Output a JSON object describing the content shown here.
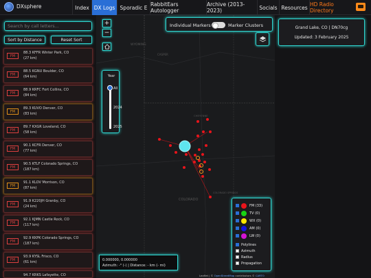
{
  "app": {
    "title": "DXsphere"
  },
  "nav": [
    {
      "label": "Index"
    },
    {
      "label": "DX Logs"
    },
    {
      "label": "Sporadic E"
    },
    {
      "label": "RabbitEars Autologger"
    },
    {
      "label": "Archive (2013-2023)"
    },
    {
      "label": "Socials"
    },
    {
      "label": "Resources"
    },
    {
      "label": "HD Radio Directory"
    }
  ],
  "sidebar": {
    "search_placeholder": "Search by call letters...",
    "sort_label": "Sort by Distance",
    "reset_label": "Reset Sort",
    "stations": [
      {
        "band": "FM",
        "name": "88.3 KFFR Winter Park, CO",
        "dist": "(27 km)"
      },
      {
        "band": "FM",
        "name": "88.5 KGNU Boulder, CO",
        "dist": "(64 km)"
      },
      {
        "band": "FM",
        "name": "88.9 KRFC Fort Collins, CO",
        "dist": "(84 km)"
      },
      {
        "band": "FM",
        "name": "89.3 KUVO Denver, CO",
        "dist": "(83 km)"
      },
      {
        "band": "FM",
        "name": "89.7 KXGR Loveland, CO",
        "dist": "(58 km)"
      },
      {
        "band": "FM",
        "name": "90.1 KCFR Denver, CO",
        "dist": "(77 km)"
      },
      {
        "band": "FM",
        "name": "90.5 KTLF Colorado Springs, CO",
        "dist": "(187 km)"
      },
      {
        "band": "FM",
        "name": "91.1 KLOV Morrison, CO",
        "dist": "(87 km)"
      },
      {
        "band": "FM",
        "name": "91.9 K220JH Granby, CO",
        "dist": "(24 km)"
      },
      {
        "band": "FM",
        "name": "92.1 KJMN Castle Rock, CO",
        "dist": "(117 km)"
      },
      {
        "band": "FM",
        "name": "92.9 KKPK Colorado Springs, CO",
        "dist": "(187 km)"
      },
      {
        "band": "FM",
        "name": "93.9 KYSL Frisco, CO",
        "dist": "(61 km)"
      },
      {
        "band": "FM",
        "name": "94.7 KRKS Lafayette, CO",
        "dist": ""
      }
    ]
  },
  "map": {
    "zoom_in": "+",
    "zoom_out": "−",
    "year_title": "Year",
    "year_all": "All",
    "year_2024": "2024",
    "year_2025": "2025",
    "labels": {
      "wyoming": "WYOMING",
      "casper": "CASPER",
      "cheyenne": "CHEYENNE",
      "colorado": "COLORADO",
      "colorado_springs": "COLORADO SPRINGS"
    },
    "coords": "0.000000, 0.000000",
    "azimuth": "Azimuth: -° (-) | Distance: - km (- mi)",
    "attribution_prefix": "Leaflet | © ",
    "attribution_osm": "OpenStreetMap",
    "attribution_mid": " contributors © ",
    "attribution_carto": "CARTO",
    "marker_left": "Individual Markers",
    "marker_right": "Marker Clusters"
  },
  "legend": {
    "items": [
      {
        "label": "FM (33)",
        "color": "#e8141b"
      },
      {
        "label": "TV (0)",
        "color": "#18d414"
      },
      {
        "label": "WX (0)",
        "color": "#ffe600"
      },
      {
        "label": "AM (0)",
        "color": "#1414e0"
      },
      {
        "label": "LW (0)",
        "color": "#d414d4"
      }
    ],
    "options": [
      {
        "label": "Polylines",
        "checked": true
      },
      {
        "label": "Azimuth",
        "checked": false
      },
      {
        "label": "Radius",
        "checked": false
      },
      {
        "label": "Propagation",
        "checked": false
      }
    ]
  },
  "info": {
    "location": "Grand Lake, CO | DN70cg",
    "updated": "Updated: 3 February 2025"
  }
}
